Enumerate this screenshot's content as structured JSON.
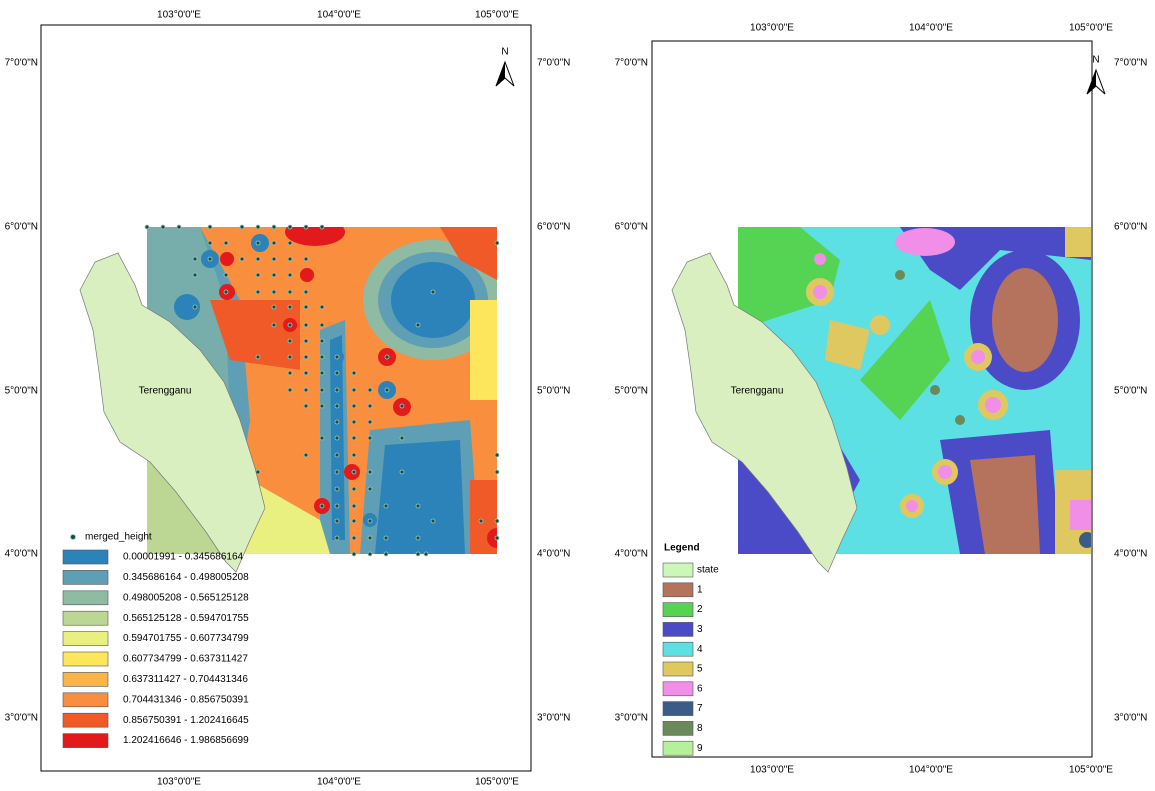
{
  "left_map": {
    "top_labels": [
      "103°0'0\"E",
      "104°0'0\"E",
      "105°0'0\"E"
    ],
    "bottom_labels": [
      "103°0'0\"E",
      "104°0'0\"E",
      "105°0'0\"E"
    ],
    "left_labels": [
      "7°0'0\"N",
      "6°0'0\"N",
      "5°0'0\"N",
      "4°0'0\"N",
      "3°0'0\"N"
    ],
    "right_labels": [
      "7°0'0\"N",
      "6°0'0\"N",
      "5°0'0\"N",
      "4°0'0\"N",
      "3°0'0\"N"
    ],
    "north": "N",
    "region_label": "Terengganu",
    "legend": {
      "points_label": "merged_height",
      "classes": [
        "0.00001991 - 0.345686164",
        "0.345686164 - 0.498005208",
        "0.498005208 - 0.565125128",
        "0.565125128 - 0.594701755",
        "0.594701755 - 0.607734799",
        "0.607734799 - 0.637311427",
        "0.637311427 - 0.704431346",
        "0.704431346 - 0.856750391",
        "0.856750391 - 1.202416645",
        "1.202416646 - 1.986856699"
      ],
      "colors": [
        "#2b83ba",
        "#5e9fb5",
        "#8fbba2",
        "#bcd693",
        "#e9f080",
        "#fde65b",
        "#fbb446",
        "#f88e3e",
        "#ef5a28",
        "#e31a1c"
      ]
    }
  },
  "right_map": {
    "top_labels": [
      "103°0'0\"E",
      "104°0'0\"E",
      "105°0'0\"E"
    ],
    "bottom_labels": [
      "103°0'0\"E",
      "104°0'0\"E",
      "105°0'0\"E"
    ],
    "left_labels": [
      "7°0'0\"N",
      "6°0'0\"N",
      "5°0'0\"N",
      "4°0'0\"N",
      "3°0'0\"N"
    ],
    "right_labels": [
      "7°0'0\"N",
      "6°0'0\"N",
      "5°0'0\"N",
      "4°0'0\"N",
      "3°0'0\"N"
    ],
    "north": "N",
    "region_label": "Terengganu",
    "legend": {
      "title": "Legend",
      "items": [
        "state",
        "1",
        "2",
        "3",
        "4",
        "5",
        "6",
        "7",
        "8",
        "9"
      ],
      "colors": [
        "#ccf7b8",
        "#b5735e",
        "#55d353",
        "#4b4bc8",
        "#5ce0e4",
        "#e0c860",
        "#f08ee8",
        "#3b5c86",
        "#6a8a5a",
        "#b7f09a"
      ]
    }
  }
}
